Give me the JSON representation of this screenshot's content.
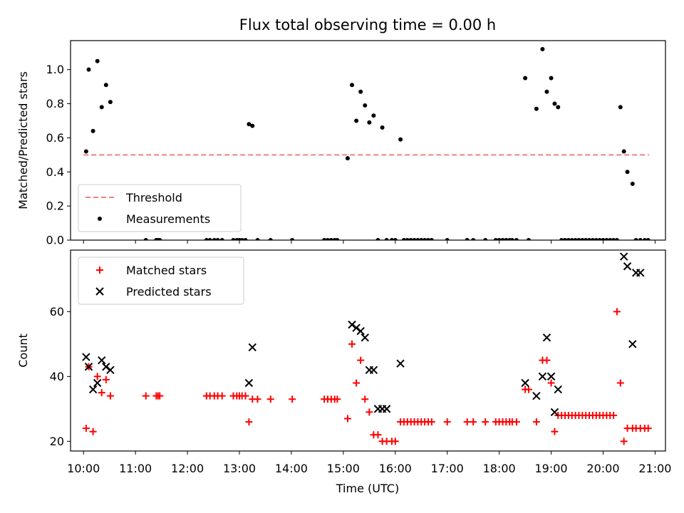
{
  "chart_data": {
    "title": "Flux total observing time = 0.00 h",
    "xlabel": "Time (UTC)",
    "xlim": [
      "09:45",
      "21:12"
    ],
    "xticks": [
      "10:00",
      "11:00",
      "12:00",
      "13:00",
      "14:00",
      "15:00",
      "16:00",
      "17:00",
      "18:00",
      "19:00",
      "20:00",
      "21:00"
    ],
    "panels": [
      {
        "type": "scatter",
        "ylabel": "Matched/Predicted stars",
        "ylim": [
          0,
          1.17
        ],
        "yticks": [
          "0.0",
          "0.2",
          "0.4",
          "0.6",
          "0.8",
          "1.0"
        ],
        "ytick_values": [
          0,
          0.2,
          0.4,
          0.6,
          0.8,
          1.0
        ],
        "legend_position": "lower-left",
        "series": [
          {
            "name": "Threshold",
            "kind": "line",
            "style": "dashed",
            "color": "#f08080",
            "x": [
              "10:00",
              "20:53"
            ],
            "y": [
              0.5,
              0.5
            ]
          },
          {
            "name": "Measurements",
            "kind": "scatter",
            "marker": "dot",
            "color": "#000000",
            "x": [
              "10:03",
              "10:06",
              "10:11",
              "10:16",
              "10:21",
              "10:26",
              "10:31",
              "11:12",
              "11:24",
              "11:26",
              "11:28",
              "12:22",
              "12:26",
              "12:31",
              "12:35",
              "12:40",
              "12:53",
              "12:57",
              "13:00",
              "13:03",
              "13:07",
              "13:11",
              "13:15",
              "13:21",
              "13:36",
              "14:01",
              "14:38",
              "14:42",
              "14:46",
              "14:50",
              "14:53",
              "15:05",
              "15:10",
              "15:15",
              "15:20",
              "15:25",
              "15:30",
              "15:35",
              "15:40",
              "15:45",
              "15:50",
              "15:56",
              "16:00",
              "16:06",
              "16:10",
              "16:14",
              "16:18",
              "16:22",
              "16:26",
              "16:30",
              "16:34",
              "16:38",
              "16:42",
              "17:00",
              "17:23",
              "17:30",
              "17:44",
              "17:56",
              "18:00",
              "18:04",
              "18:08",
              "18:12",
              "18:15",
              "18:20",
              "18:30",
              "18:34",
              "18:43",
              "18:50",
              "18:55",
              "19:00",
              "19:04",
              "19:08",
              "19:12",
              "19:16",
              "19:20",
              "19:24",
              "19:28",
              "19:32",
              "19:36",
              "19:40",
              "19:44",
              "19:48",
              "19:52",
              "19:56",
              "20:00",
              "20:04",
              "20:08",
              "20:12",
              "20:16",
              "20:20",
              "20:24",
              "20:28",
              "20:34",
              "20:38",
              "20:43",
              "20:48",
              "20:52"
            ],
            "y": [
              0.52,
              1.0,
              0.64,
              1.05,
              0.78,
              0.91,
              0.81,
              0,
              0,
              0,
              0,
              0,
              0,
              0,
              0,
              0,
              0,
              0,
              0,
              0,
              0,
              0.68,
              0.67,
              0,
              0,
              0,
              0,
              0,
              0,
              0,
              0,
              0.48,
              0.91,
              0.7,
              0.87,
              0.79,
              0.69,
              0.73,
              0,
              0.66,
              0,
              0,
              0,
              0.59,
              0,
              0,
              0,
              0,
              0,
              0,
              0,
              0,
              0,
              0,
              0,
              0,
              0,
              0,
              0,
              0,
              0,
              0,
              0,
              0,
              0.95,
              0,
              0.77,
              1.12,
              0.87,
              0.95,
              0.8,
              0.78,
              0,
              0,
              0,
              0,
              0,
              0,
              0,
              0,
              0,
              0,
              0,
              0,
              0,
              0,
              0,
              0,
              0,
              0.78,
              0.52,
              0.4,
              0.33,
              0,
              0,
              0,
              0
            ]
          }
        ]
      },
      {
        "type": "scatter",
        "ylabel": "Count",
        "ylim": [
          17,
          79
        ],
        "yticks": [
          "20",
          "40",
          "60"
        ],
        "ytick_values": [
          20,
          40,
          60
        ],
        "legend_position": "upper-left",
        "series": [
          {
            "name": "Matched stars",
            "marker": "plus",
            "color": "#ff0000",
            "x": [
              "10:03",
              "10:06",
              "10:11",
              "10:16",
              "10:21",
              "10:26",
              "10:31",
              "11:12",
              "11:24",
              "11:26",
              "11:28",
              "12:22",
              "12:26",
              "12:31",
              "12:35",
              "12:40",
              "12:53",
              "12:57",
              "13:00",
              "13:03",
              "13:07",
              "13:11",
              "13:15",
              "13:21",
              "13:36",
              "14:01",
              "14:38",
              "14:42",
              "14:46",
              "14:50",
              "14:53",
              "15:05",
              "15:10",
              "15:15",
              "15:20",
              "15:25",
              "15:30",
              "15:35",
              "15:40",
              "15:45",
              "15:50",
              "15:56",
              "16:00",
              "16:06",
              "16:10",
              "16:14",
              "16:18",
              "16:22",
              "16:26",
              "16:30",
              "16:34",
              "16:38",
              "16:42",
              "17:00",
              "17:23",
              "17:30",
              "17:44",
              "17:56",
              "18:00",
              "18:04",
              "18:08",
              "18:12",
              "18:15",
              "18:20",
              "18:30",
              "18:34",
              "18:43",
              "18:50",
              "18:55",
              "19:00",
              "19:04",
              "19:08",
              "19:12",
              "19:16",
              "19:20",
              "19:24",
              "19:28",
              "19:32",
              "19:36",
              "19:40",
              "19:44",
              "19:48",
              "19:52",
              "19:56",
              "20:00",
              "20:04",
              "20:08",
              "20:12",
              "20:16",
              "20:20",
              "20:24",
              "20:28",
              "20:34",
              "20:38",
              "20:43",
              "20:48",
              "20:52"
            ],
            "y": [
              24,
              43,
              23,
              40,
              35,
              39,
              34,
              34,
              34,
              34,
              34,
              34,
              34,
              34,
              34,
              34,
              34,
              34,
              34,
              34,
              34,
              26,
              33,
              33,
              33,
              33,
              33,
              33,
              33,
              33,
              33,
              27,
              50,
              38,
              45,
              33,
              29,
              22,
              22,
              20,
              20,
              20,
              20,
              26,
              26,
              26,
              26,
              26,
              26,
              26,
              26,
              26,
              26,
              26,
              26,
              26,
              26,
              26,
              26,
              26,
              26,
              26,
              26,
              26,
              36,
              36,
              26,
              45,
              45,
              38,
              23,
              28,
              28,
              28,
              28,
              28,
              28,
              28,
              28,
              28,
              28,
              28,
              28,
              28,
              28,
              28,
              28,
              28,
              60,
              38,
              20,
              24,
              24,
              24,
              24,
              24,
              24
            ]
          },
          {
            "name": "Predicted stars",
            "marker": "x",
            "color": "#000000",
            "x": [
              "10:03",
              "10:06",
              "10:11",
              "10:16",
              "10:21",
              "10:26",
              "10:31",
              "13:11",
              "13:15",
              "15:10",
              "15:15",
              "15:20",
              "15:25",
              "15:30",
              "15:35",
              "15:40",
              "15:45",
              "15:50",
              "16:06",
              "18:30",
              "18:43",
              "18:50",
              "18:55",
              "19:00",
              "19:04",
              "19:08",
              "20:24",
              "20:28",
              "20:34",
              "20:38",
              "20:43"
            ],
            "y": [
              46,
              43,
              36,
              38,
              45,
              43,
              42,
              38,
              49,
              56,
              55,
              54,
              52,
              42,
              42,
              30,
              30,
              30,
              44,
              38,
              34,
              40,
              52,
              40,
              29,
              36,
              77,
              74,
              50,
              72,
              72
            ]
          }
        ]
      }
    ]
  }
}
